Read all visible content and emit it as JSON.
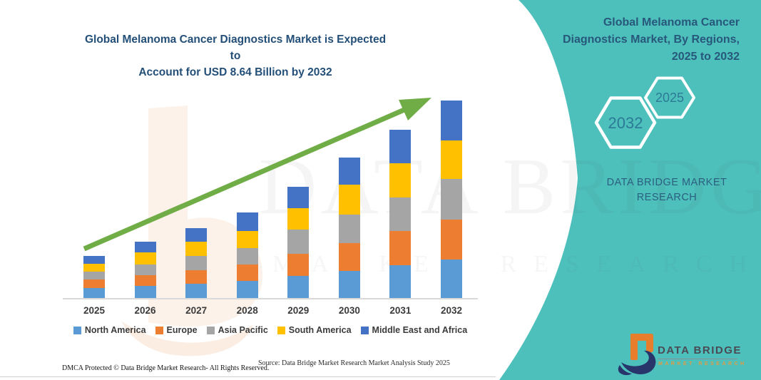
{
  "title": {
    "line1": "Global Melanoma Cancer Diagnostics Market is Expected to",
    "line2": "Account for USD 8.64 Billion by 2032"
  },
  "chart_data": {
    "type": "bar",
    "stacked": true,
    "title": "Global Melanoma Cancer Diagnostics Market is Expected to Account for USD 8.64 Billion by 2032",
    "unit": "USD Billion",
    "categories": [
      "2025",
      "2026",
      "2027",
      "2028",
      "2029",
      "2030",
      "2031",
      "2032"
    ],
    "series": [
      {
        "name": "North America",
        "color": "#5B9BD5",
        "values": [
          0.47,
          0.56,
          0.65,
          0.78,
          0.99,
          1.21,
          1.46,
          1.72
        ]
      },
      {
        "name": "Europe",
        "color": "#ED7D31",
        "values": [
          0.37,
          0.47,
          0.59,
          0.72,
          0.96,
          1.21,
          1.49,
          1.74
        ]
      },
      {
        "name": "Asia Pacific",
        "color": "#A5A5A5",
        "values": [
          0.34,
          0.47,
          0.62,
          0.72,
          1.06,
          1.24,
          1.46,
          1.77
        ]
      },
      {
        "name": "South America",
        "color": "#FFC000",
        "values": [
          0.34,
          0.53,
          0.62,
          0.72,
          0.93,
          1.3,
          1.49,
          1.68
        ]
      },
      {
        "name": "Middle East and Africa",
        "color": "#4472C4",
        "values": [
          0.34,
          0.47,
          0.59,
          0.83,
          0.93,
          1.18,
          1.46,
          1.73
        ]
      }
    ],
    "totals": [
      1.86,
      2.5,
      3.07,
      3.77,
      4.87,
      6.14,
      7.36,
      8.64
    ],
    "ylim": [
      0,
      9
    ],
    "grid": false,
    "y_axis_visible": false,
    "legend_position": "bottom",
    "trend_arrow": {
      "present": true,
      "color": "#70AD47",
      "direction": "up-right"
    }
  },
  "side_panel": {
    "title_line1": "Global Melanoma Cancer",
    "title_line2": "Diagnostics Market, By Regions,",
    "title_line3": "2025 to 2032",
    "hexagon_back_year": "2032",
    "hexagon_front_year": "2025",
    "brand": "DATA BRIDGE MARKET RESEARCH"
  },
  "watermark": {
    "text_primary": "DATA BRIDGE",
    "text_secondary": "MARKET RESEARCH"
  },
  "logo": {
    "name": "DATA BRIDGE",
    "tagline": "MARKET RESEARCH"
  },
  "footer": {
    "dmca": "DMCA Protected © Data Bridge Market Research-  All Rights Reserved.",
    "source": "Source: Data Bridge Market Research  Market Analysis Study 2025"
  },
  "colors": {
    "panel": "#4EC0BC",
    "arrow": "#70AD47",
    "title_text": "#234F78",
    "panel_text": "#27587B",
    "hexagon_text": "#2C7A96",
    "brand_text": "#2B5F80",
    "axis_label": "#3B3B3B",
    "logo_orange": "#E87D2B",
    "logo_navy": "#27356B",
    "logo_text": "#4A4A55",
    "logo_tagline": "#E39A40"
  }
}
